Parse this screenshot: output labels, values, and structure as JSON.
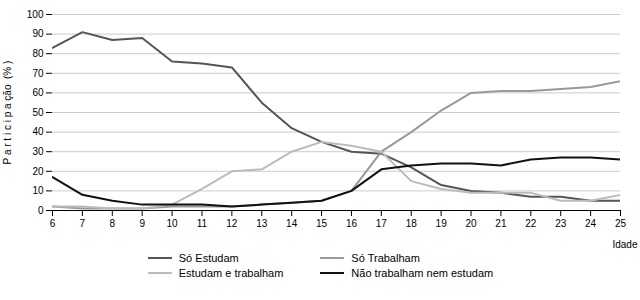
{
  "chart_data": {
    "type": "line",
    "xlabel": "Idade",
    "ylabel": "P a r t i c i p a ção  (% )",
    "x": [
      6,
      7,
      8,
      9,
      10,
      11,
      12,
      13,
      14,
      15,
      16,
      17,
      18,
      19,
      20,
      21,
      22,
      23,
      24,
      25
    ],
    "series": [
      {
        "name": "Só Estudam",
        "color": "#555555",
        "values": [
          83,
          91,
          87,
          88,
          76,
          75,
          73,
          55,
          42,
          35,
          30,
          29,
          22,
          13,
          10,
          9,
          7,
          7,
          5,
          5
        ]
      },
      {
        "name": "Só Trabalham",
        "color": "#999999",
        "values": [
          2,
          1,
          1,
          1,
          2,
          2,
          2,
          3,
          4,
          5,
          10,
          30,
          40,
          51,
          60,
          61,
          61,
          62,
          63,
          66
        ]
      },
      {
        "name": "Estudam e trabalham",
        "color": "#bbbbbb",
        "values": [
          2,
          2,
          1,
          1,
          3,
          11,
          20,
          21,
          30,
          35,
          33,
          30,
          15,
          11,
          9,
          9,
          9,
          5,
          5,
          8
        ]
      },
      {
        "name": "Não trabalham nem estudam",
        "color": "#111111",
        "values": [
          17,
          8,
          5,
          3,
          3,
          3,
          2,
          3,
          4,
          5,
          10,
          21,
          23,
          24,
          24,
          23,
          26,
          27,
          27,
          26
        ]
      }
    ],
    "xlim": [
      6,
      25
    ],
    "xticks": [
      6,
      7,
      8,
      9,
      10,
      11,
      12,
      13,
      14,
      15,
      16,
      17,
      18,
      19,
      20,
      21,
      22,
      23,
      24,
      25
    ],
    "ylim": [
      0,
      100
    ],
    "yticks": [
      0,
      10,
      20,
      30,
      40,
      50,
      60,
      70,
      80,
      90,
      100
    ],
    "grid": true,
    "legend": "bottom"
  }
}
